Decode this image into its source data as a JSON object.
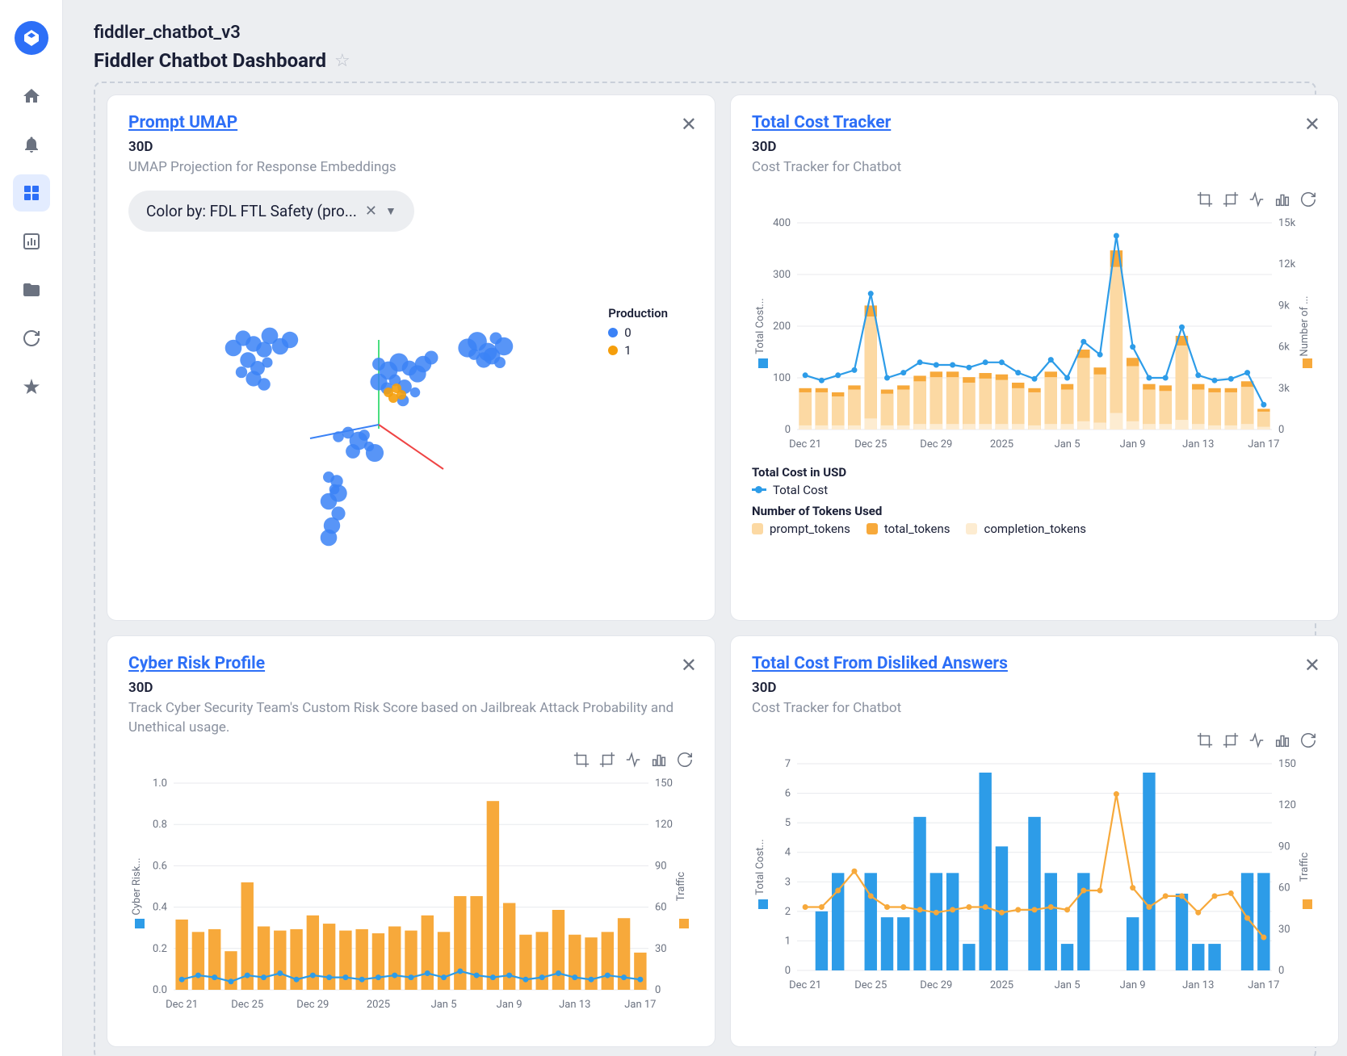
{
  "breadcrumb": "fiddler_chatbot_v3",
  "title": "Fiddler Chatbot Dashboard",
  "colors": {
    "blue": "#2d9ce8",
    "orange": "#f7a93b",
    "orange_light": "#fcd9a3",
    "orange_pale": "#fdecd1",
    "line_blue": "#2d9ce8",
    "scatter_blue": "#3b82f6",
    "scatter_orange": "#f59e0b",
    "grid": "#e8eaed",
    "axis": "#b8bdc9",
    "text": "#6b7280"
  },
  "x_labels": [
    "Dec 21",
    "Dec 25",
    "Dec 29",
    "2025",
    "Jan 5",
    "Jan 9",
    "Jan 13",
    "Jan 17"
  ],
  "cards": {
    "umap": {
      "title": "Prompt UMAP",
      "subtitle": "30D",
      "desc": "UMAP Projection for Response Embeddings",
      "color_by": "Color by: FDL FTL Safety (pro...",
      "legend_title": "Production",
      "legend_items": [
        {
          "label": "0",
          "color": "#3b82f6"
        },
        {
          "label": "1",
          "color": "#f59e0b"
        }
      ],
      "points_blue": [
        [
          130,
          130
        ],
        [
          142,
          118
        ],
        [
          155,
          125
        ],
        [
          168,
          132
        ],
        [
          175,
          115
        ],
        [
          188,
          128
        ],
        [
          200,
          120
        ],
        [
          148,
          145
        ],
        [
          160,
          155
        ],
        [
          172,
          148
        ],
        [
          155,
          168
        ],
        [
          168,
          175
        ],
        [
          140,
          160
        ],
        [
          310,
          150
        ],
        [
          322,
          158
        ],
        [
          335,
          148
        ],
        [
          348,
          155
        ],
        [
          358,
          162
        ],
        [
          330,
          170
        ],
        [
          342,
          178
        ],
        [
          355,
          185
        ],
        [
          340,
          195
        ],
        [
          320,
          180
        ],
        [
          365,
          150
        ],
        [
          375,
          142
        ],
        [
          310,
          172
        ],
        [
          420,
          130
        ],
        [
          432,
          122
        ],
        [
          445,
          135
        ],
        [
          455,
          118
        ],
        [
          465,
          128
        ],
        [
          440,
          145
        ],
        [
          450,
          140
        ],
        [
          428,
          138
        ],
        [
          460,
          148
        ],
        [
          260,
          240
        ],
        [
          272,
          235
        ],
        [
          285,
          245
        ],
        [
          292,
          238
        ],
        [
          278,
          258
        ],
        [
          298,
          252
        ],
        [
          305,
          260
        ],
        [
          248,
          290
        ],
        [
          255,
          305
        ],
        [
          248,
          320
        ],
        [
          260,
          335
        ],
        [
          252,
          350
        ],
        [
          248,
          365
        ],
        [
          260,
          310
        ],
        [
          258,
          295
        ]
      ],
      "points_orange": [
        [
          322,
          185
        ],
        [
          332,
          180
        ],
        [
          328,
          192
        ],
        [
          338,
          188
        ]
      ],
      "axes": {
        "green": [
          [
            310,
            120
          ],
          [
            310,
            230
          ]
        ],
        "red": [
          [
            310,
            225
          ],
          [
            390,
            280
          ]
        ],
        "blue": [
          [
            310,
            225
          ],
          [
            225,
            242
          ]
        ]
      }
    },
    "cost": {
      "title": "Total Cost Tracker",
      "subtitle": "30D",
      "desc": "Cost Tracker for Chatbot",
      "y_left": {
        "label": "Total Cost...",
        "min": 0,
        "max": 400,
        "step": 100
      },
      "y_right": {
        "label": "Number of ...",
        "min": 0,
        "max": 15000,
        "ticks": [
          "0",
          "3k",
          "6k",
          "9k",
          "12k",
          "15k"
        ]
      },
      "line": [
        105,
        95,
        105,
        115,
        263,
        100,
        110,
        130,
        125,
        125,
        120,
        130,
        130,
        110,
        98,
        135,
        100,
        170,
        145,
        375,
        160,
        100,
        100,
        198,
        105,
        95,
        98,
        110,
        48
      ],
      "bars_total": [
        3000,
        3000,
        2700,
        3200,
        9000,
        2900,
        3200,
        3900,
        4200,
        4200,
        3800,
        4100,
        4000,
        3400,
        3000,
        4200,
        3300,
        5800,
        4500,
        13000,
        5200,
        3300,
        3200,
        6800,
        3300,
        3000,
        3000,
        3500,
        1500
      ],
      "bars_prompt": [
        2700,
        2700,
        2400,
        2900,
        8200,
        2600,
        2900,
        3500,
        3800,
        3800,
        3400,
        3700,
        3600,
        3000,
        2700,
        3800,
        2900,
        5200,
        4000,
        11800,
        4600,
        2900,
        2800,
        6100,
        2900,
        2700,
        2700,
        3100,
        1300
      ],
      "bars_completion": [
        300,
        300,
        300,
        300,
        800,
        300,
        300,
        400,
        400,
        400,
        400,
        400,
        400,
        400,
        300,
        400,
        400,
        600,
        500,
        1200,
        600,
        400,
        400,
        700,
        400,
        300,
        300,
        400,
        200
      ],
      "legend_a": "Total Cost in USD",
      "legend_a1": "Total Cost",
      "legend_b": "Number of Tokens Used",
      "legend_b1": "prompt_tokens",
      "legend_b2": "total_tokens",
      "legend_b3": "completion_tokens"
    },
    "cyber": {
      "title": "Cyber Risk Profile",
      "subtitle": "30D",
      "desc": "Track Cyber Security Team's Custom Risk Score based on Jailbreak Attack Probability and Unethical usage.",
      "y_left": {
        "label": "Cyber Risk...",
        "min": 0,
        "max": 1,
        "step": 0.2
      },
      "y_right": {
        "label": "Traffic",
        "min": 0,
        "max": 150,
        "step": 30
      },
      "line": [
        0.05,
        0.07,
        0.06,
        0.04,
        0.07,
        0.06,
        0.08,
        0.05,
        0.07,
        0.06,
        0.06,
        0.05,
        0.06,
        0.07,
        0.06,
        0.08,
        0.06,
        0.09,
        0.07,
        0.06,
        0.07,
        0.05,
        0.06,
        0.08,
        0.06,
        0.05,
        0.07,
        0.06,
        0.05
      ],
      "bars": [
        51,
        42,
        44,
        28,
        78,
        46,
        43,
        44,
        54,
        48,
        43,
        44,
        41,
        46,
        43,
        54,
        42,
        68,
        68,
        137,
        63,
        40,
        42,
        58,
        40,
        38,
        42,
        52,
        27
      ]
    },
    "disliked": {
      "title": "Total Cost From Disliked Answers",
      "subtitle": "30D",
      "desc": "Cost Tracker for Chatbot",
      "y_left": {
        "label": "Total Cost...",
        "min": 0,
        "max": 7,
        "step": 1
      },
      "y_right": {
        "label": "Traffic",
        "min": 0,
        "max": 150,
        "step": 30
      },
      "line": [
        46,
        46,
        58,
        72,
        54,
        46,
        46,
        44,
        42,
        44,
        46,
        46,
        42,
        44,
        44,
        46,
        44,
        58,
        58,
        128,
        60,
        46,
        54,
        54,
        42,
        54,
        56,
        38,
        24
      ],
      "bars": [
        0,
        2.0,
        3.3,
        0,
        3.3,
        1.8,
        1.8,
        5.2,
        3.3,
        3.3,
        0.9,
        6.7,
        4.2,
        0,
        5.2,
        3.3,
        0.9,
        3.3,
        0,
        0,
        1.8,
        6.7,
        0,
        2.6,
        0.9,
        0.9,
        0,
        3.3,
        3.3
      ]
    }
  }
}
